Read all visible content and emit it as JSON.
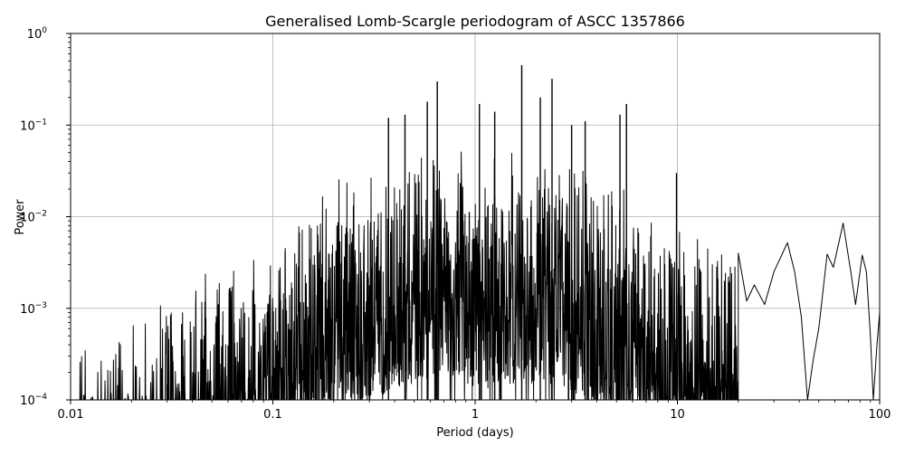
{
  "chart_data": {
    "type": "line",
    "title": "Generalised Lomb-Scargle periodogram of ASCC 1357866",
    "xlabel": "Period (days)",
    "ylabel": "Power",
    "xscale": "log",
    "yscale": "log",
    "xlim": [
      0.01,
      100
    ],
    "ylim": [
      0.0001,
      1
    ],
    "grid": true,
    "x_ticks": [
      {
        "value": 0.01,
        "label": "0.01"
      },
      {
        "value": 0.1,
        "label": "0.1"
      },
      {
        "value": 1,
        "label": "1"
      },
      {
        "value": 10,
        "label": "10"
      },
      {
        "value": 100,
        "label": "100"
      }
    ],
    "y_ticks": [
      {
        "value": 0.0001,
        "base": "10",
        "exp": "−4"
      },
      {
        "value": 0.001,
        "base": "10",
        "exp": "−3"
      },
      {
        "value": 0.01,
        "base": "10",
        "exp": "−2"
      },
      {
        "value": 0.1,
        "base": "10",
        "exp": "−1"
      },
      {
        "value": 1,
        "base": "10",
        "exp": "0"
      }
    ],
    "series_color": "#000000",
    "envelope": [
      {
        "x": 0.01,
        "y": 0.0005
      },
      {
        "x": 0.015,
        "y": 0.0006
      },
      {
        "x": 0.02,
        "y": 0.0009
      },
      {
        "x": 0.03,
        "y": 0.0014
      },
      {
        "x": 0.04,
        "y": 0.0022
      },
      {
        "x": 0.05,
        "y": 0.0035
      },
      {
        "x": 0.07,
        "y": 0.005
      },
      {
        "x": 0.1,
        "y": 0.009
      },
      {
        "x": 0.15,
        "y": 0.015
      },
      {
        "x": 0.2,
        "y": 0.025
      },
      {
        "x": 0.3,
        "y": 0.04
      },
      {
        "x": 0.5,
        "y": 0.06
      },
      {
        "x": 0.7,
        "y": 0.08
      },
      {
        "x": 1.0,
        "y": 0.05
      },
      {
        "x": 1.5,
        "y": 0.06
      },
      {
        "x": 2.0,
        "y": 0.06
      },
      {
        "x": 3.0,
        "y": 0.05
      },
      {
        "x": 4.0,
        "y": 0.03
      },
      {
        "x": 6.0,
        "y": 0.02
      },
      {
        "x": 8.0,
        "y": 0.012
      },
      {
        "x": 10.0,
        "y": 0.01
      },
      {
        "x": 15.0,
        "y": 0.008
      },
      {
        "x": 20.0,
        "y": 0.004
      }
    ],
    "peaks": [
      {
        "x": 0.373,
        "y": 0.12
      },
      {
        "x": 0.45,
        "y": 0.13
      },
      {
        "x": 0.58,
        "y": 0.18
      },
      {
        "x": 0.65,
        "y": 0.3
      },
      {
        "x": 1.05,
        "y": 0.17
      },
      {
        "x": 1.25,
        "y": 0.14
      },
      {
        "x": 1.7,
        "y": 0.45
      },
      {
        "x": 2.1,
        "y": 0.2
      },
      {
        "x": 2.4,
        "y": 0.32
      },
      {
        "x": 3.0,
        "y": 0.1
      },
      {
        "x": 3.5,
        "y": 0.11
      },
      {
        "x": 5.2,
        "y": 0.13
      },
      {
        "x": 5.6,
        "y": 0.17
      },
      {
        "x": 9.9,
        "y": 0.03
      }
    ],
    "smooth_tail": [
      {
        "x": 20,
        "y": 0.004
      },
      {
        "x": 22,
        "y": 0.0012
      },
      {
        "x": 24,
        "y": 0.0018
      },
      {
        "x": 27,
        "y": 0.0011
      },
      {
        "x": 30,
        "y": 0.0025
      },
      {
        "x": 35,
        "y": 0.0052
      },
      {
        "x": 38,
        "y": 0.0025
      },
      {
        "x": 41,
        "y": 0.0008
      },
      {
        "x": 44,
        "y": 0.0001
      },
      {
        "x": 47,
        "y": 0.00028
      },
      {
        "x": 50,
        "y": 0.0006
      },
      {
        "x": 55,
        "y": 0.0039
      },
      {
        "x": 59,
        "y": 0.0028
      },
      {
        "x": 66,
        "y": 0.0085
      },
      {
        "x": 72,
        "y": 0.0025
      },
      {
        "x": 76,
        "y": 0.0011
      },
      {
        "x": 82,
        "y": 0.0038
      },
      {
        "x": 86,
        "y": 0.0025
      },
      {
        "x": 90,
        "y": 0.0005
      },
      {
        "x": 93,
        "y": 0.0001
      },
      {
        "x": 97,
        "y": 0.0004
      },
      {
        "x": 100,
        "y": 0.0009
      }
    ]
  }
}
